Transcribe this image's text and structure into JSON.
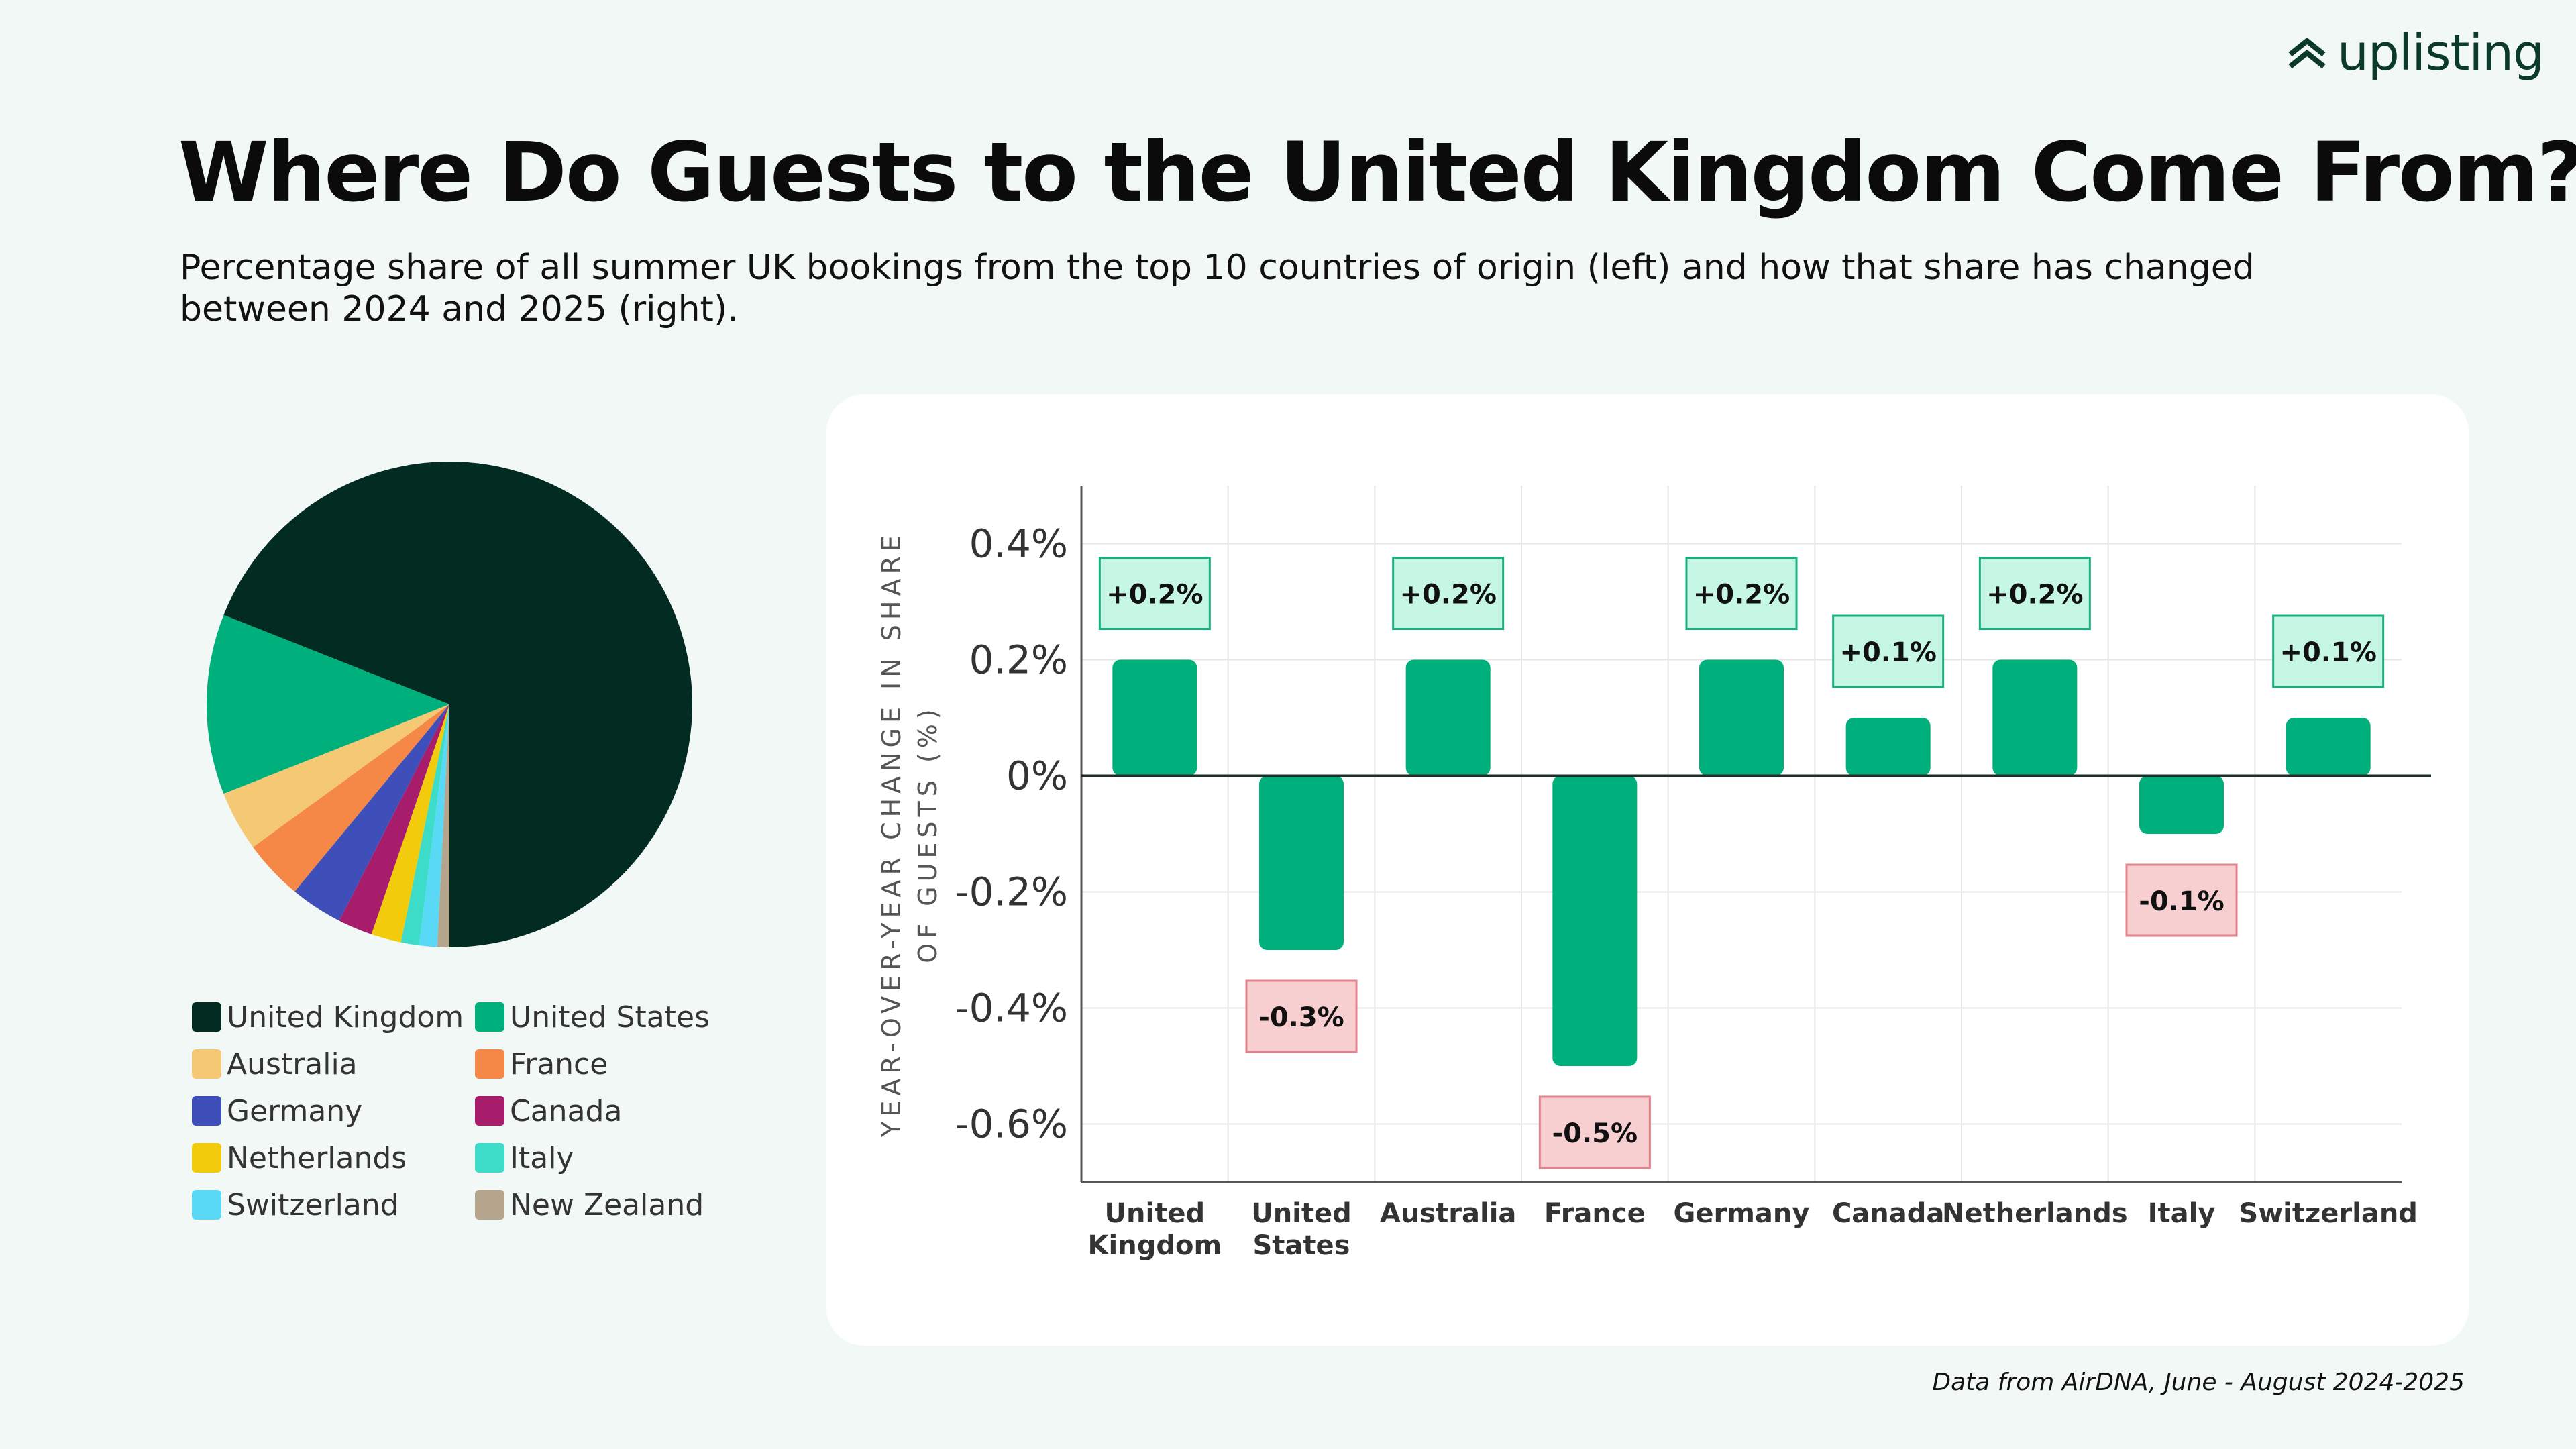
{
  "brand": {
    "name": "uplisting"
  },
  "title": "Where Do Guests to the United Kingdom Come From?",
  "subtitle": "Percentage share of all summer UK bookings from the top 10 countries of origin (left) and how that share has changed between 2024 and 2025 (right).",
  "source": "Data from AirDNA, June - August 2024-2025",
  "chart_data": [
    {
      "type": "pie",
      "title": "",
      "legend_position": "bottom",
      "categories": [
        "United Kingdom",
        "United States",
        "Australia",
        "France",
        "Germany",
        "Canada",
        "Netherlands",
        "Italy",
        "Switzerland",
        "New Zealand"
      ],
      "values": [
        69.0,
        12.0,
        4.0,
        4.0,
        3.5,
        2.3,
        2.0,
        1.2,
        1.2,
        0.8
      ],
      "colors": [
        "#022c22",
        "#00b07c",
        "#f5c873",
        "#f58747",
        "#3f4fb9",
        "#a81c6c",
        "#f2cc0c",
        "#3ddcc8",
        "#5ad9f7",
        "#b5a58c"
      ]
    },
    {
      "type": "bar",
      "categories": [
        "United Kingdom",
        "United States",
        "Australia",
        "France",
        "Germany",
        "Canada",
        "Netherlands",
        "Italy",
        "Switzerland"
      ],
      "category_lines": [
        [
          "United",
          "Kingdom"
        ],
        [
          "United",
          "States"
        ],
        [
          "Australia"
        ],
        [
          "France"
        ],
        [
          "Germany"
        ],
        [
          "Canada"
        ],
        [
          "Netherlands"
        ],
        [
          "Italy"
        ],
        [
          "Switzerland"
        ]
      ],
      "values": [
        0.2,
        -0.3,
        0.2,
        -0.5,
        0.2,
        0.1,
        0.2,
        -0.1,
        0.1
      ],
      "data_labels": [
        "+0.2%",
        "-0.3%",
        "+0.2%",
        "-0.5%",
        "+0.2%",
        "+0.1%",
        "+0.2%",
        "-0.1%",
        "+0.1%"
      ],
      "ylabel_lines": [
        "YEAR-OVER-YEAR CHANGE IN SHARE",
        "OF GUESTS (%)"
      ],
      "ylim": [
        -0.7,
        0.5
      ],
      "yticks": [
        0.4,
        0.2,
        0,
        -0.2,
        -0.4,
        -0.6
      ],
      "ytick_labels": [
        "0.4%",
        "0.2%",
        "0%",
        "-0.2%",
        "-0.4%",
        "-0.6%"
      ],
      "grid": true,
      "bar_color": "#00b07c",
      "positive_label_bg": "#c5f7e4",
      "positive_label_border": "#17b07e",
      "negative_label_bg": "#f7cfd1",
      "negative_label_border": "#e2828a"
    }
  ]
}
